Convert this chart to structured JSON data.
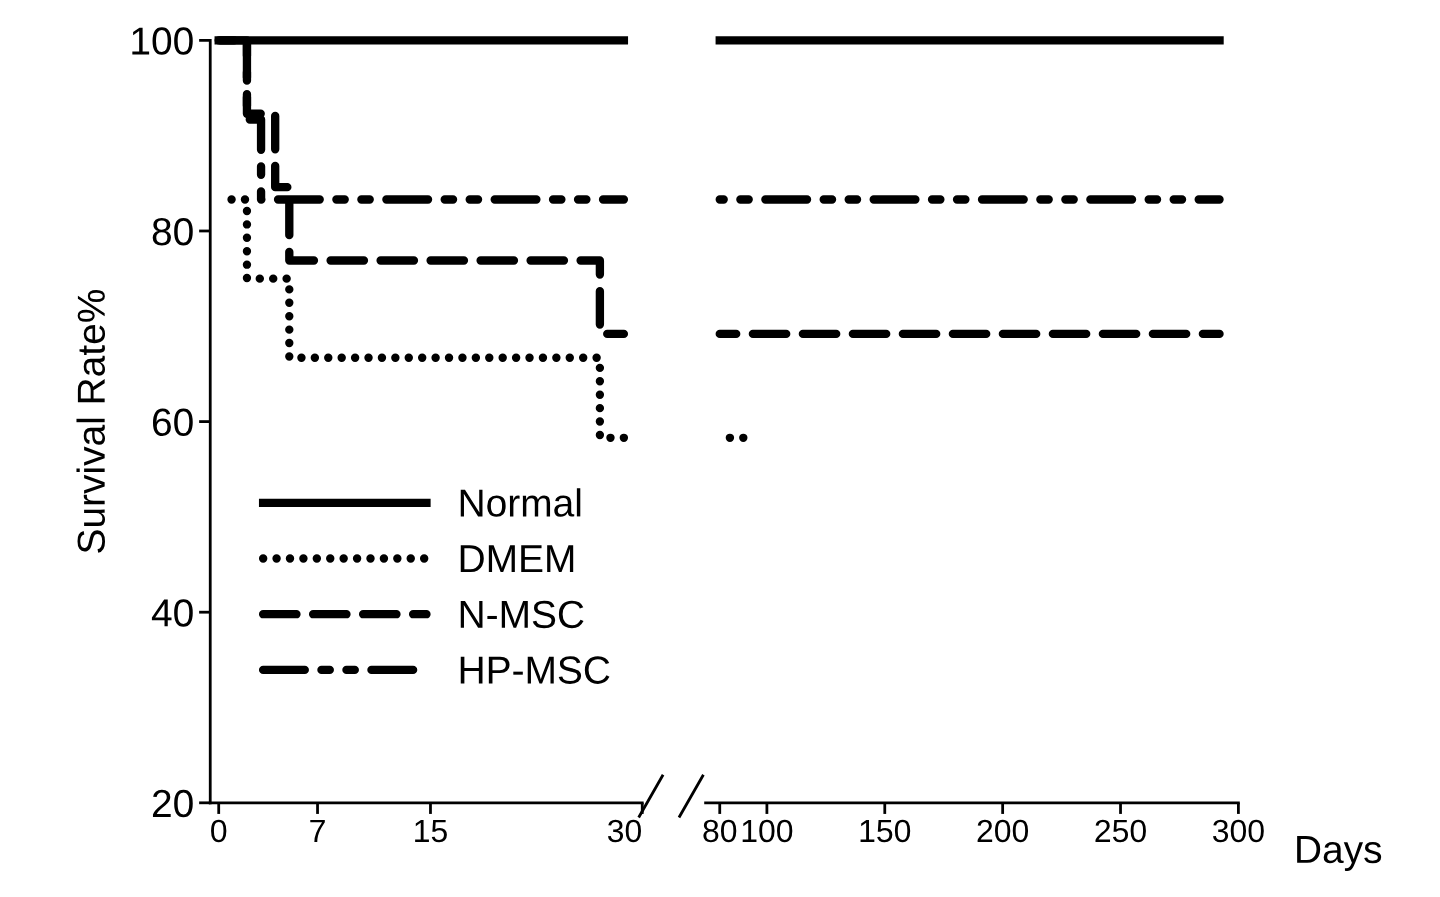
{
  "chart_data": [
    {
      "type": "step",
      "ylabel": "Survival Rate%",
      "xlim": [
        -0.6,
        30
      ],
      "xticks": [
        0,
        7,
        15,
        30
      ],
      "ylim": [
        20,
        100
      ],
      "yticks": [
        20,
        40,
        60,
        80,
        100
      ],
      "legend": "bottom",
      "grid": false,
      "series": [
        {
          "name": "Normal",
          "color": "#000000",
          "line_style": "solid",
          "x": [
            0,
            28.7
          ],
          "values": [
            100,
            100
          ]
        },
        {
          "name": "DMEM",
          "color": "#000000",
          "line_style": "dotted",
          "x": [
            0,
            2,
            5,
            27,
            28.7
          ],
          "values": [
            83.3,
            75,
            66.7,
            58.3,
            58.3
          ]
        },
        {
          "name": "N-MSC",
          "color": "#000000",
          "line_style": "dashed",
          "x": [
            0,
            2,
            4,
            5,
            27,
            28.7
          ],
          "values": [
            100,
            92.3,
            84.6,
            76.9,
            69.2,
            69.2
          ]
        },
        {
          "name": "HP-MSC",
          "color": "#000000",
          "line_style": "dashdotdot",
          "x": [
            0,
            2,
            3,
            28.7
          ],
          "values": [
            100,
            91.7,
            83.3,
            83.3
          ]
        }
      ]
    },
    {
      "type": "step",
      "xlabel": "Days",
      "xlim": [
        74,
        300
      ],
      "xticks": [
        80,
        100,
        150,
        200,
        250,
        300
      ],
      "ylim": [
        20,
        100
      ],
      "tick_labels": "x",
      "grid": false,
      "series": [
        {
          "color": "#000000",
          "line_style": "solid",
          "x": [
            80,
            292
          ],
          "values": [
            100,
            100
          ]
        },
        {
          "color": "#000000",
          "line_style": "dotted",
          "x": [
            80,
            90
          ],
          "values": [
            58.3,
            58.3
          ]
        },
        {
          "color": "#000000",
          "line_style": "dashed",
          "x": [
            80,
            292
          ],
          "values": [
            69.2,
            69.2
          ]
        },
        {
          "color": "#000000",
          "line_style": "dashdotdot",
          "x": [
            80,
            292
          ],
          "values": [
            83.3,
            83.3
          ]
        }
      ]
    }
  ]
}
